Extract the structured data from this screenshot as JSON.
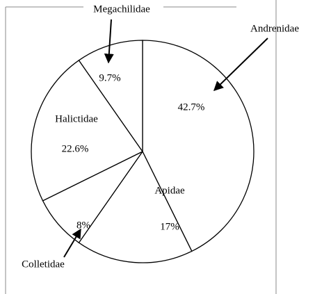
{
  "chart_data": {
    "type": "pie",
    "categories": [
      "Andrenidae",
      "Apidae",
      "Colletidae",
      "Halictidae",
      "Megachilidae"
    ],
    "values": [
      42.7,
      17,
      8,
      22.6,
      9.7
    ],
    "value_labels": [
      "42.7%",
      "17%",
      "8%",
      "22.6%",
      "9.7%"
    ],
    "color": "#ffffff",
    "stroke": "#000000"
  }
}
